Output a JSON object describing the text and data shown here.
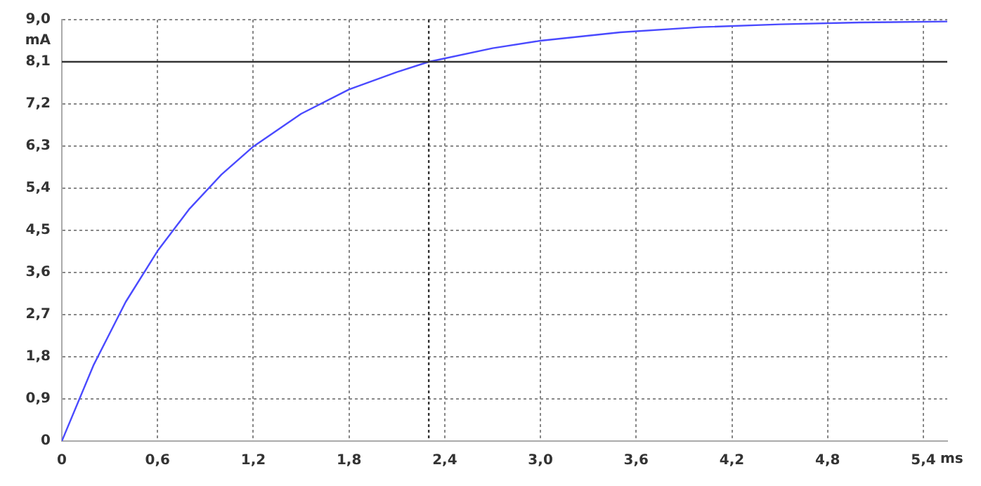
{
  "chart_data": {
    "type": "line",
    "xlabel": "ms",
    "ylabel": "mA",
    "x": [
      0,
      0.2,
      0.4,
      0.6,
      0.8,
      1.0,
      1.2,
      1.5,
      1.8,
      2.1,
      2.3,
      2.7,
      3.0,
      3.5,
      4.0,
      4.5,
      5.0,
      5.55
    ],
    "series": [
      {
        "color": "#4a4aff",
        "values": [
          0,
          1.63,
          2.97,
          4.06,
          4.96,
          5.69,
          6.29,
          6.99,
          7.51,
          7.88,
          8.1,
          8.39,
          8.55,
          8.73,
          8.84,
          8.9,
          8.94,
          8.96
        ]
      }
    ],
    "xlim": [
      0,
      5.55
    ],
    "xticks": [
      0,
      {
        "value": 0.6,
        "label": "0,6"
      },
      {
        "value": 1.2,
        "label": "1,2"
      },
      {
        "value": 1.8,
        "label": "1,8"
      },
      {
        "value": 2.4,
        "label": "2,4"
      },
      {
        "value": 3.0,
        "label": "3,0"
      },
      {
        "value": 3.6,
        "label": "3,6"
      },
      {
        "value": 4.2,
        "label": "4,2"
      },
      {
        "value": 4.8,
        "label": "4,8"
      },
      {
        "value": 5.4,
        "label": "5,4"
      }
    ],
    "ylim": [
      0,
      9
    ],
    "yticks": [
      0,
      {
        "value": 0.9,
        "label": "0,9"
      },
      {
        "value": 1.8,
        "label": "1,8"
      },
      {
        "value": 2.7,
        "label": "2,7"
      },
      {
        "value": 3.6,
        "label": "3,6"
      },
      {
        "value": 4.5,
        "label": "4,5"
      },
      {
        "value": 5.4,
        "label": "5,4"
      },
      {
        "value": 6.3,
        "label": "6,3"
      },
      {
        "value": 7.2,
        "label": "7,2"
      },
      {
        "value": 8.1,
        "label": "8,1"
      },
      {
        "value": 9.0,
        "label": "9,0"
      }
    ],
    "grid": true,
    "marker": "none",
    "line_style": "solid",
    "legend": false,
    "ref_lines": [
      {
        "axis": "y",
        "value": 8.1,
        "color": "#333333",
        "line_style": "solid"
      },
      {
        "axis": "x",
        "value": 2.3,
        "color": "#333333",
        "line_style": "dotted"
      }
    ]
  }
}
